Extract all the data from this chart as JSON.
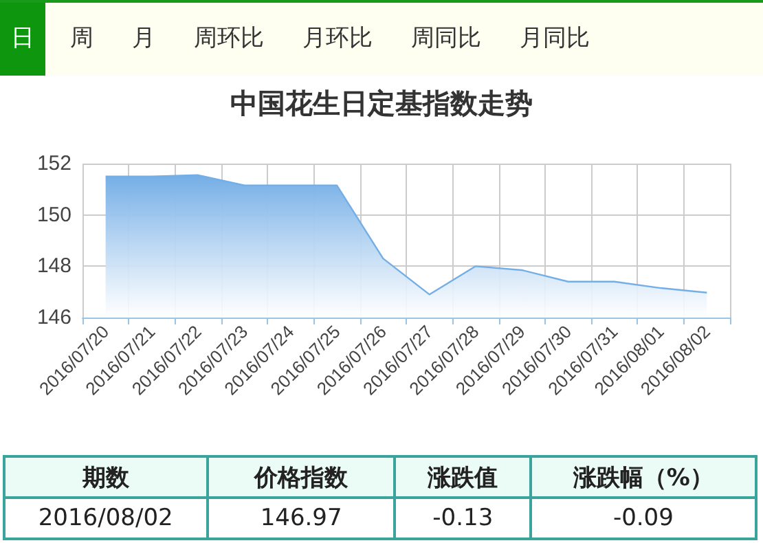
{
  "chart_data": [
    {
      "type": "other",
      "annotations": [
        "日",
        "周",
        "月",
        "周环比",
        "月环比",
        "周同比",
        "月同比"
      ]
    },
    {
      "type": "area",
      "title": "中国花生日定基指数走势",
      "categories": [
        "2016/07/20",
        "2016/07/21",
        "2016/07/22",
        "2016/07/23",
        "2016/07/24",
        "2016/07/25",
        "2016/07/26",
        "2016/07/27",
        "2016/07/28",
        "2016/07/29",
        "2016/07/30",
        "2016/07/31",
        "2016/08/01",
        "2016/08/02"
      ],
      "series": [
        {
          "color": "#74aee6",
          "values": [
            151.5,
            151.5,
            151.55,
            151.15,
            151.15,
            151.15,
            148.3,
            146.9,
            148.0,
            147.85,
            147.4,
            147.4,
            147.15,
            146.97
          ]
        }
      ],
      "ylim": [
        146,
        152
      ],
      "yticks": [
        146,
        148,
        150,
        152
      ],
      "grid": true,
      "marker": "none"
    },
    {
      "type": "other",
      "annotations": [
        "期数",
        "价格指数",
        "涨跌值",
        "涨跌幅（%）",
        "2016/08/02",
        "146.97",
        "-0.13",
        "-0.09"
      ]
    }
  ]
}
